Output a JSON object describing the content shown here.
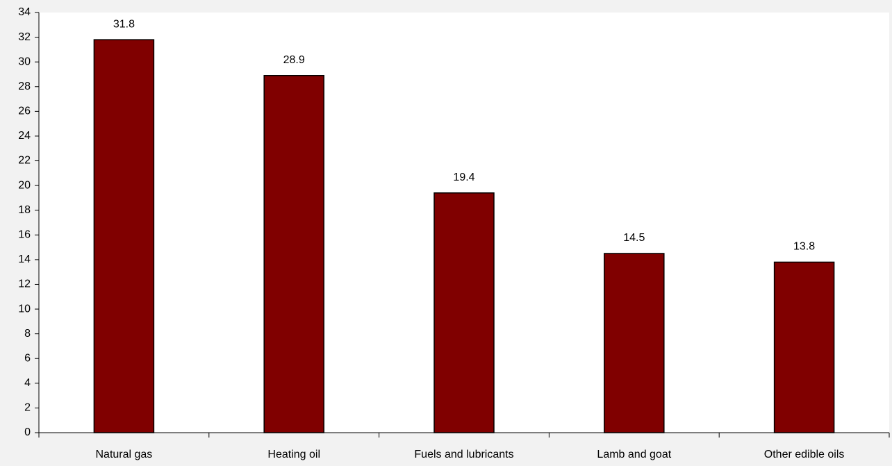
{
  "chart_data": {
    "type": "bar",
    "categories": [
      "Natural gas",
      "Heating oil",
      "Fuels and lubricants",
      "Lamb and goat",
      "Other edible oils"
    ],
    "values": [
      31.8,
      28.9,
      19.4,
      14.5,
      13.8
    ],
    "color": "#800000",
    "ylim": [
      0,
      34
    ],
    "yticks": [
      0,
      2,
      4,
      6,
      8,
      10,
      12,
      14,
      16,
      18,
      20,
      22,
      24,
      26,
      28,
      30,
      32,
      34
    ],
    "grid": false
  }
}
